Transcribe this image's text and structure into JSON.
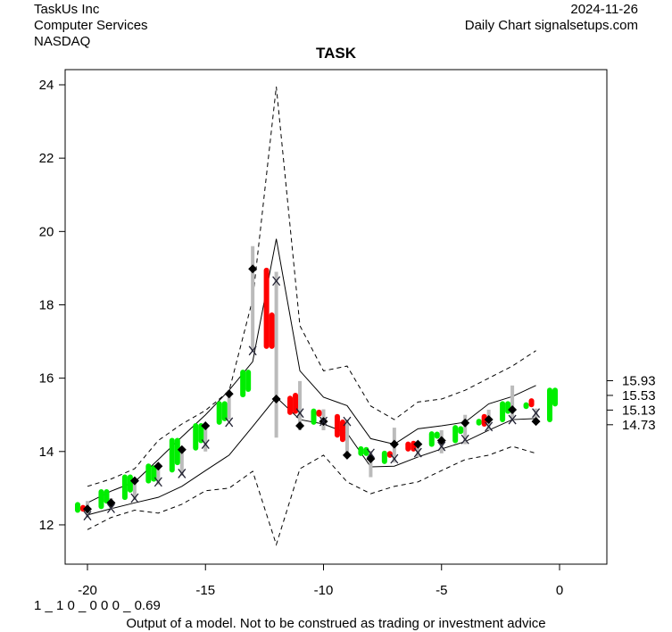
{
  "header": {
    "company": "TaskUs Inc",
    "sector": "Computer Services",
    "exchange": "NASDAQ",
    "date": "2024-11-26",
    "source": "Daily Chart signalsetups.com"
  },
  "footer": {
    "code": "1 _ 1 0 _ 0 0 0 _ 0.69",
    "disclaimer": "Output of a model. Not to be construed as trading or investment advice"
  },
  "colors": {
    "up": "#00ee00",
    "down": "#ff0000",
    "range": "#bbbbbb",
    "line": "#000000"
  },
  "chart_data": {
    "type": "line",
    "title": "TASK",
    "xlim": [
      -21,
      2
    ],
    "ylim": [
      10.9,
      24.4
    ],
    "xticks": [
      -20,
      -15,
      -10,
      -5,
      0
    ],
    "yticks": [
      12,
      14,
      16,
      18,
      20,
      22,
      24
    ],
    "right_labels": [
      "15.93",
      "15.53",
      "15.13",
      "14.73"
    ],
    "grid": false,
    "x": [
      -20,
      -19,
      -18,
      -17,
      -16,
      -15,
      -14,
      -13,
      -12,
      -11,
      -10,
      -9,
      -8,
      -7,
      -6,
      -5,
      -4,
      -3,
      -2,
      -1
    ],
    "upper_band": [
      12.6,
      12.92,
      13.17,
      13.78,
      14.4,
      15.0,
      15.67,
      16.45,
      19.8,
      16.2,
      15.48,
      15.25,
      14.35,
      14.2,
      14.62,
      14.7,
      14.8,
      15.3,
      15.5,
      15.8
    ],
    "lower_band": [
      12.27,
      12.44,
      12.6,
      12.75,
      13.05,
      13.48,
      13.9,
      14.68,
      15.48,
      14.87,
      14.75,
      14.5,
      13.58,
      13.6,
      13.85,
      14.07,
      14.27,
      14.58,
      14.87,
      14.9
    ],
    "upper_dashed": [
      13.05,
      13.25,
      13.53,
      14.3,
      14.75,
      15.12,
      15.65,
      18.15,
      23.95,
      17.43,
      16.2,
      16.33,
      15.24,
      14.87,
      15.35,
      15.43,
      15.67,
      16.0,
      16.33,
      16.75
    ],
    "lower_dashed": [
      11.87,
      12.2,
      12.4,
      12.32,
      12.56,
      12.93,
      13.0,
      13.46,
      11.46,
      13.53,
      13.9,
      13.17,
      12.85,
      13.05,
      13.17,
      13.48,
      13.78,
      13.9,
      14.14,
      13.95
    ],
    "days": [
      {
        "x": -20,
        "bars": [
          {
            "lo": 12.4,
            "hi": 12.55,
            "c": "up"
          },
          {
            "lo": 12.43,
            "hi": 12.47,
            "c": "down"
          }
        ],
        "range": [
          12.2,
          12.65
        ],
        "diamond": 12.43,
        "mark": 12.25
      },
      {
        "x": -19,
        "bars": [
          {
            "lo": 12.5,
            "hi": 12.9,
            "c": "up"
          },
          {
            "lo": 12.65,
            "hi": 12.9,
            "c": "up"
          }
        ],
        "range": [
          12.44,
          12.73
        ],
        "diamond": 12.6,
        "mark": 12.45
      },
      {
        "x": -18,
        "bars": [
          {
            "lo": 12.75,
            "hi": 13.3,
            "c": "up"
          },
          {
            "lo": 12.95,
            "hi": 13.3,
            "c": "up"
          }
        ],
        "range": [
          12.68,
          13.24
        ],
        "diamond": 13.2,
        "mark": 12.73
      },
      {
        "x": -17,
        "bars": [
          {
            "lo": 13.2,
            "hi": 13.6,
            "c": "up"
          },
          {
            "lo": 13.25,
            "hi": 13.55,
            "c": "up"
          }
        ],
        "range": [
          13.1,
          13.65
        ],
        "diamond": 13.6,
        "mark": 13.17
      },
      {
        "x": -16,
        "bars": [
          {
            "lo": 13.5,
            "hi": 14.3,
            "c": "up"
          },
          {
            "lo": 13.7,
            "hi": 14.3,
            "c": "up"
          }
        ],
        "range": [
          13.34,
          14.1
        ],
        "diamond": 14.05,
        "mark": 13.4
      },
      {
        "x": -15,
        "bars": [
          {
            "lo": 14.1,
            "hi": 14.7,
            "c": "up"
          },
          {
            "lo": 14.3,
            "hi": 14.7,
            "c": "up"
          }
        ],
        "range": [
          14.0,
          14.7
        ],
        "diamond": 14.7,
        "mark": 14.2
      },
      {
        "x": -14,
        "bars": [
          {
            "lo": 14.8,
            "hi": 15.3,
            "c": "up"
          },
          {
            "lo": 14.9,
            "hi": 15.3,
            "c": "up"
          }
        ],
        "range": [
          14.87,
          15.67
        ],
        "diamond": 15.57,
        "mark": 14.8
      },
      {
        "x": -13,
        "bars": [
          {
            "lo": 15.55,
            "hi": 16.16,
            "c": "up"
          },
          {
            "lo": 15.7,
            "hi": 16.16,
            "c": "up"
          }
        ],
        "range": [
          16.75,
          19.6
        ],
        "diamond": 18.98,
        "mark": 16.75
      },
      {
        "x": -12,
        "bars": [
          {
            "lo": 16.87,
            "hi": 18.94,
            "c": "down"
          },
          {
            "lo": 16.87,
            "hi": 17.72,
            "c": "down"
          }
        ],
        "range": [
          14.38,
          18.9
        ],
        "diamond": 15.43,
        "mark": 18.65
      },
      {
        "x": -11,
        "bars": [
          {
            "lo": 15.07,
            "hi": 15.45,
            "c": "down"
          },
          {
            "lo": 15.1,
            "hi": 15.53,
            "c": "down"
          }
        ],
        "range": [
          14.58,
          15.92
        ],
        "diamond": 14.7,
        "mark": 15.05
      },
      {
        "x": -10,
        "bars": [
          {
            "lo": 14.8,
            "hi": 15.1,
            "c": "up"
          },
          {
            "lo": 15.02,
            "hi": 15.07,
            "c": "down"
          }
        ],
        "range": [
          14.58,
          15.15
        ],
        "diamond": 14.82,
        "mark": 14.82
      },
      {
        "x": -9,
        "bars": [
          {
            "lo": 14.45,
            "hi": 14.95,
            "c": "down"
          },
          {
            "lo": 14.33,
            "hi": 14.8,
            "c": "down"
          }
        ],
        "range": [
          13.85,
          14.87
        ],
        "diamond": 13.9,
        "mark": 14.82
      },
      {
        "x": -8,
        "bars": [
          {
            "lo": 13.95,
            "hi": 14.07,
            "c": "up"
          },
          {
            "lo": 13.95,
            "hi": 14.05,
            "c": "up"
          }
        ],
        "range": [
          13.3,
          14.02
        ],
        "diamond": 13.8,
        "mark": 13.95
      },
      {
        "x": -7,
        "bars": [
          {
            "lo": 13.73,
            "hi": 13.95,
            "c": "up"
          },
          {
            "lo": 13.9,
            "hi": 13.94,
            "c": "down"
          }
        ],
        "range": [
          13.7,
          14.65
        ],
        "diamond": 14.2,
        "mark": 13.8
      },
      {
        "x": -6,
        "bars": [
          {
            "lo": 14.07,
            "hi": 14.2,
            "c": "down"
          },
          {
            "lo": 14.07,
            "hi": 14.22,
            "c": "down"
          }
        ],
        "range": [
          13.85,
          14.25
        ],
        "diamond": 14.2,
        "mark": 13.97
      },
      {
        "x": -5,
        "bars": [
          {
            "lo": 14.2,
            "hi": 14.48,
            "c": "up"
          },
          {
            "lo": 14.42,
            "hi": 14.47,
            "c": "up"
          }
        ],
        "range": [
          13.95,
          14.58
        ],
        "diamond": 14.3,
        "mark": 14.14
      },
      {
        "x": -4,
        "bars": [
          {
            "lo": 14.3,
            "hi": 14.65,
            "c": "up"
          },
          {
            "lo": 14.55,
            "hi": 14.62,
            "c": "up"
          }
        ],
        "range": [
          14.2,
          15.0
        ],
        "diamond": 14.78,
        "mark": 14.33
      },
      {
        "x": -3,
        "bars": [
          {
            "lo": 14.78,
            "hi": 14.82,
            "c": "up"
          },
          {
            "lo": 14.75,
            "hi": 14.95,
            "c": "down"
          }
        ],
        "range": [
          14.58,
          15.14
        ],
        "diamond": 14.87,
        "mark": 14.68
      },
      {
        "x": -2,
        "bars": [
          {
            "lo": 14.87,
            "hi": 15.3,
            "c": "up"
          },
          {
            "lo": 15.1,
            "hi": 15.3,
            "c": "up"
          }
        ],
        "range": [
          14.87,
          15.8
        ],
        "diamond": 15.14,
        "mark": 14.87
      },
      {
        "x": -1,
        "bars": [
          {
            "lo": 15.23,
            "hi": 15.27,
            "c": "up"
          },
          {
            "lo": 15.28,
            "hi": 15.38,
            "c": "down"
          }
        ],
        "range": [
          14.8,
          15.17
        ],
        "diamond": 14.82,
        "mark": 15.05
      },
      {
        "x": 0,
        "bars": [
          {
            "lo": 14.87,
            "hi": 15.67,
            "c": "up"
          },
          {
            "lo": 15.3,
            "hi": 15.67,
            "c": "up"
          }
        ]
      }
    ]
  }
}
